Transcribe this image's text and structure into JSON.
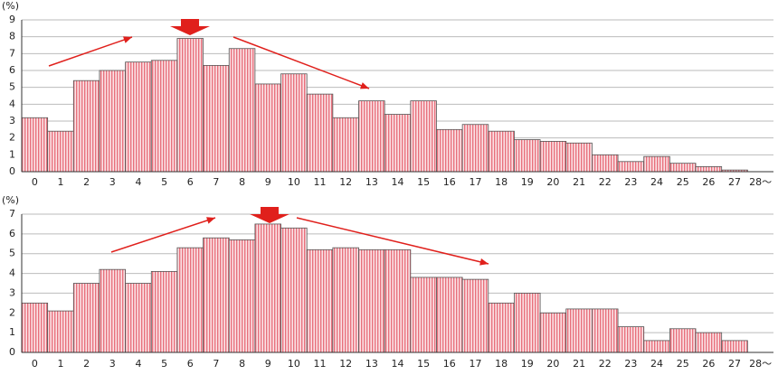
{
  "chart_data": [
    {
      "type": "bar",
      "y_label": "(%)",
      "color": "#e8707c",
      "grid": true,
      "categories": [
        "0",
        "1",
        "2",
        "3",
        "4",
        "5",
        "6",
        "7",
        "8",
        "9",
        "10",
        "11",
        "12",
        "13",
        "14",
        "15",
        "16",
        "17",
        "18",
        "19",
        "20",
        "21",
        "22",
        "23",
        "24",
        "25",
        "26",
        "27",
        "28～"
      ],
      "values": [
        3.2,
        2.4,
        5.4,
        6.0,
        6.5,
        6.6,
        7.9,
        6.3,
        7.3,
        5.2,
        5.8,
        4.6,
        3.2,
        4.2,
        3.4,
        4.2,
        2.5,
        2.8,
        2.4,
        1.9,
        1.8,
        1.7,
        1.0,
        0.6,
        0.9,
        0.5,
        0.3,
        0.1,
        null
      ],
      "ylim": [
        0,
        9
      ],
      "yticks": [
        0,
        1,
        2,
        3,
        4,
        5,
        6,
        7,
        8,
        9
      ]
    },
    {
      "type": "bar",
      "y_label": "(%)",
      "color": "#e8707c",
      "grid": true,
      "categories": [
        "0",
        "1",
        "2",
        "3",
        "4",
        "5",
        "6",
        "7",
        "8",
        "9",
        "10",
        "11",
        "12",
        "13",
        "14",
        "15",
        "16",
        "17",
        "18",
        "19",
        "20",
        "21",
        "22",
        "23",
        "24",
        "25",
        "26",
        "27",
        "28～"
      ],
      "values": [
        2.5,
        2.1,
        3.5,
        4.2,
        3.5,
        4.1,
        5.3,
        5.8,
        5.7,
        6.5,
        6.3,
        5.2,
        5.3,
        5.2,
        5.2,
        3.8,
        3.8,
        3.7,
        2.5,
        3.0,
        2.0,
        2.2,
        2.2,
        1.3,
        0.6,
        1.2,
        1.0,
        0.6,
        null
      ],
      "ylim": [
        0,
        7
      ],
      "yticks": [
        0,
        1,
        2,
        3,
        4,
        5,
        6,
        7
      ]
    }
  ]
}
